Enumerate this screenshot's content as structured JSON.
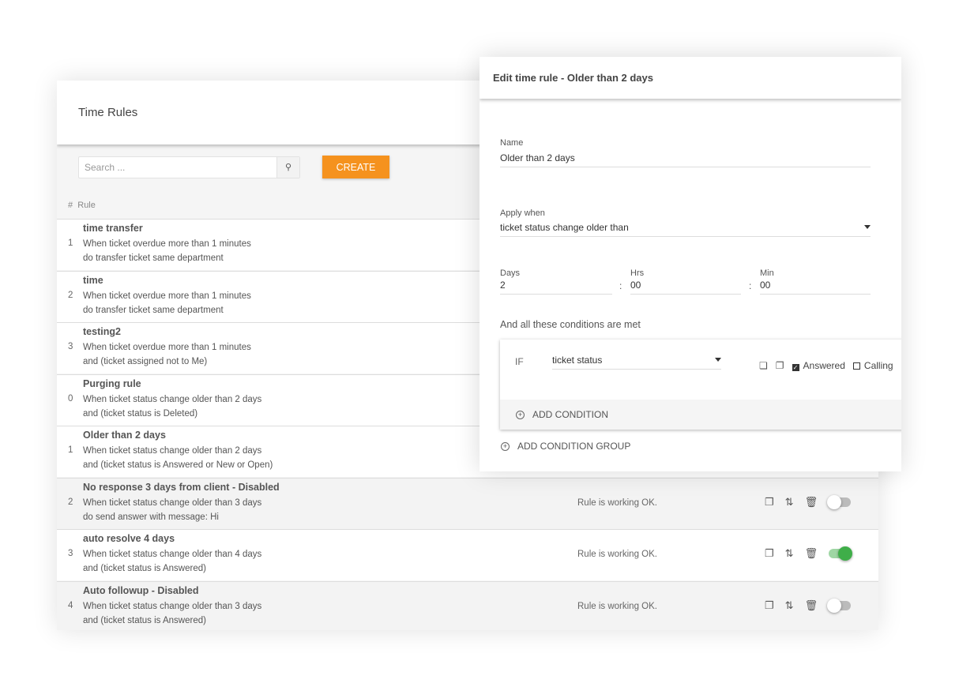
{
  "main": {
    "title": "Time Rules",
    "search_placeholder": "Search ...",
    "create_label": "CREATE",
    "col_num": "#",
    "col_rule": "Rule",
    "rules": [
      {
        "num": "1",
        "name": "time transfer",
        "line1": "When ticket overdue more than 1 minutes",
        "line2": "do transfer ticket same department"
      },
      {
        "num": "2",
        "name": "time",
        "line1": "When ticket overdue more than 1 minutes",
        "line2": "do transfer ticket same department"
      },
      {
        "num": "3",
        "name": "testing2",
        "line1": "When ticket overdue more than 1 minutes",
        "line2": "and (ticket assigned not to Me)"
      },
      {
        "num": "0",
        "name": "Purging rule",
        "line1": "When ticket status change older than 2 days",
        "line2": "and (ticket status is Deleted)"
      },
      {
        "num": "1",
        "name": "Older than 2 days",
        "line1": "When ticket status change older than 2 days",
        "line2": "and (ticket status is Answered or New or Open)"
      },
      {
        "num": "2",
        "name": "No response 3 days from client - Disabled",
        "line1": "When ticket status change older than 3 days",
        "line2": "do send answer with message: Hi",
        "status": "Rule is working OK.",
        "enabled": false
      },
      {
        "num": "3",
        "name": "auto resolve 4 days",
        "line1": "When ticket status change older than 4 days",
        "line2": "and (ticket status is Answered)",
        "status": "Rule is working OK.",
        "enabled": true
      },
      {
        "num": "4",
        "name": "Auto followup - Disabled",
        "line1": "When ticket status change older than 3 days",
        "line2": "and (ticket status is Answered)",
        "status": "Rule is working OK.",
        "enabled": false
      }
    ]
  },
  "edit": {
    "title": "Edit time rule - Older than 2 days",
    "name_label": "Name",
    "name_value": "Older than 2 days",
    "apply_label": "Apply when",
    "apply_value": "ticket status change older than",
    "days_label": "Days",
    "days_value": "2",
    "hrs_label": "Hrs",
    "hrs_value": "00",
    "min_label": "Min",
    "min_value": "00",
    "colon": ":",
    "conditions_label": "And all these conditions are met",
    "if_label": "IF",
    "field_value": "ticket status",
    "options": [
      {
        "label": "Answered",
        "checked": true
      },
      {
        "label": "Calling",
        "checked": false
      }
    ],
    "add_condition": "ADD CONDITION",
    "add_group": "ADD CONDITION GROUP"
  },
  "colors": {
    "accent": "#f5921e",
    "toggle_on": "#3fae49"
  }
}
